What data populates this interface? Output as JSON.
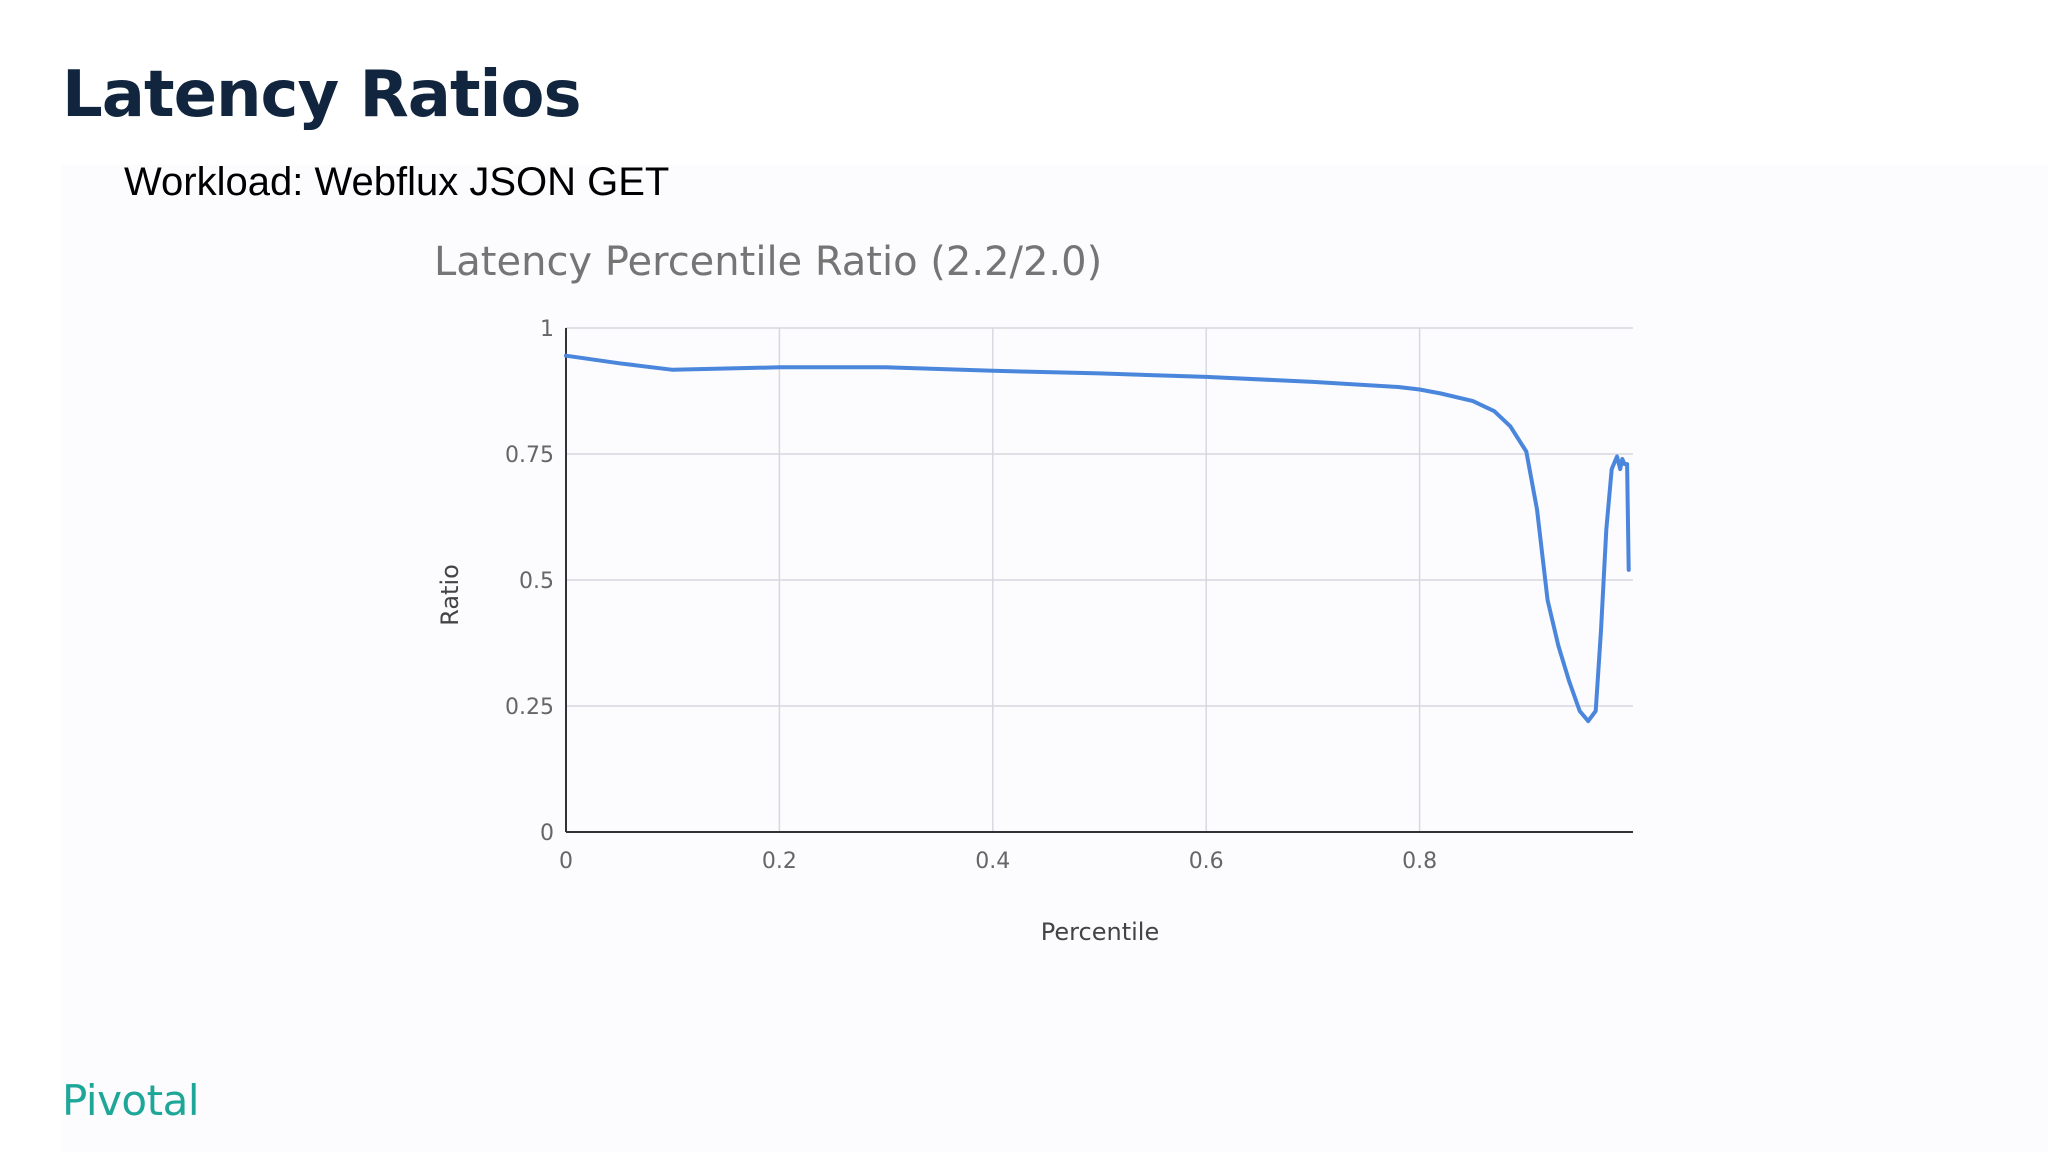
{
  "slide": {
    "title": "Latency Ratios",
    "subtitle": "Workload: Webflux JSON GET",
    "logo_text": "Pivotal"
  },
  "colors": {
    "title": "#11263e",
    "logo": "#1ea799",
    "series_line": "#4a86dc",
    "grid": "#d8d8e0",
    "axis": "#333333",
    "tick_label": "#666666"
  },
  "chart_data": {
    "type": "line",
    "title": "Latency Percentile Ratio (2.2/2.0)",
    "xlabel": "Percentile",
    "ylabel": "Ratio",
    "xlim": [
      0,
      1
    ],
    "ylim": [
      0,
      1
    ],
    "x_ticks": [
      {
        "value": 0,
        "label": "0"
      },
      {
        "value": 0.2,
        "label": "0.2"
      },
      {
        "value": 0.4,
        "label": "0.4"
      },
      {
        "value": 0.6,
        "label": "0.6"
      },
      {
        "value": 0.8,
        "label": "0.8"
      }
    ],
    "y_ticks": [
      {
        "value": 0,
        "label": "0"
      },
      {
        "value": 0.25,
        "label": "0.25"
      },
      {
        "value": 0.5,
        "label": "0.5"
      },
      {
        "value": 0.75,
        "label": "0.75"
      },
      {
        "value": 1,
        "label": "1"
      }
    ],
    "grid": true,
    "legend": "none",
    "series": [
      {
        "points": [
          [
            0,
            0.945
          ],
          [
            0.05,
            0.93
          ],
          [
            0.1,
            0.917
          ],
          [
            0.2,
            0.922
          ],
          [
            0.3,
            0.922
          ],
          [
            0.4,
            0.915
          ],
          [
            0.5,
            0.91
          ],
          [
            0.6,
            0.903
          ],
          [
            0.7,
            0.893
          ],
          [
            0.78,
            0.883
          ],
          [
            0.8,
            0.878
          ],
          [
            0.82,
            0.87
          ],
          [
            0.85,
            0.855
          ],
          [
            0.87,
            0.835
          ],
          [
            0.885,
            0.805
          ],
          [
            0.9,
            0.755
          ],
          [
            0.91,
            0.64
          ],
          [
            0.92,
            0.46
          ],
          [
            0.93,
            0.37
          ],
          [
            0.94,
            0.3
          ],
          [
            0.95,
            0.24
          ],
          [
            0.958,
            0.22
          ],
          [
            0.965,
            0.24
          ],
          [
            0.97,
            0.4
          ],
          [
            0.975,
            0.6
          ],
          [
            0.98,
            0.72
          ],
          [
            0.985,
            0.745
          ],
          [
            0.988,
            0.72
          ],
          [
            0.99,
            0.74
          ],
          [
            0.992,
            0.73
          ],
          [
            0.9945,
            0.73
          ],
          [
            0.996,
            0.52
          ]
        ]
      }
    ]
  }
}
